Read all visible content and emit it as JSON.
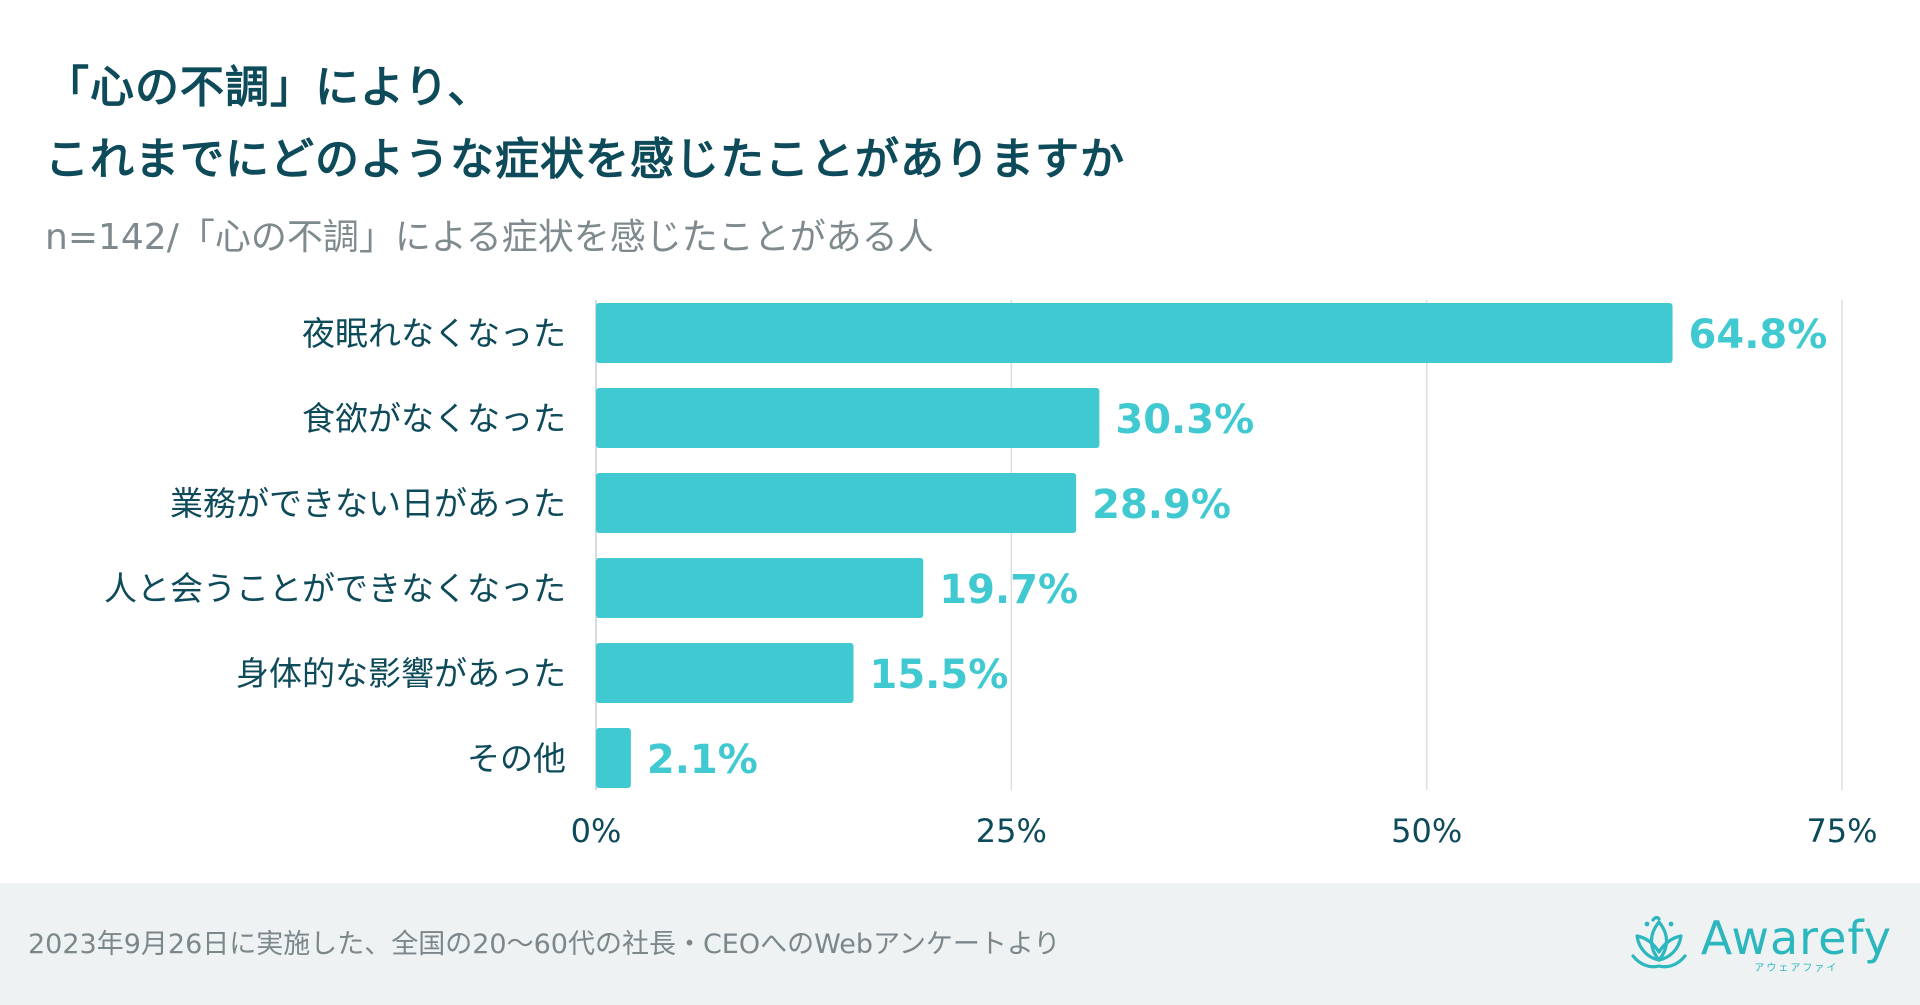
{
  "title": {
    "line1": "「心の不調」により、",
    "line2": "これまでにどのような症状を感じたことがありますか"
  },
  "subtitle": "n=142/「心の不調」による症状を感じたことがある人",
  "chart_data": {
    "type": "bar",
    "orientation": "horizontal",
    "title": "「心の不調」により、これまでにどのような症状を感じたことがありますか",
    "subtitle": "n=142/「心の不調」による症状を感じたことがある人",
    "categories": [
      "夜眠れなくなった",
      "食欲がなくなった",
      "業務ができない日があった",
      "人と会うことができなくなった",
      "身体的な影響があった",
      "その他"
    ],
    "values": [
      64.8,
      30.3,
      28.9,
      19.7,
      15.5,
      2.1
    ],
    "value_labels": [
      "64.8%",
      "30.3%",
      "28.9%",
      "19.7%",
      "15.5%",
      "2.1%"
    ],
    "xlim": [
      0,
      75
    ],
    "ticks": [
      0,
      25,
      50,
      75
    ],
    "tick_labels": [
      "0%",
      "25%",
      "50%",
      "75%"
    ],
    "xlabel": "",
    "ylabel": "",
    "grid": true,
    "bar_color": "#40c9d0",
    "label_color": "#40c9d0"
  },
  "colors": {
    "category_text": "#0d4a5a",
    "tick_text": "#0d4a5a",
    "grid": "#d9dfe1",
    "axis": "#c8cfd1"
  },
  "footer": {
    "note": "2023年9月26日に実施した、全国の20〜60代の社長・CEOへのWebアンケートより"
  },
  "brand": {
    "name": "Awarefy",
    "kana": "アウェアファイ",
    "icon": "lotus-logo-icon"
  }
}
